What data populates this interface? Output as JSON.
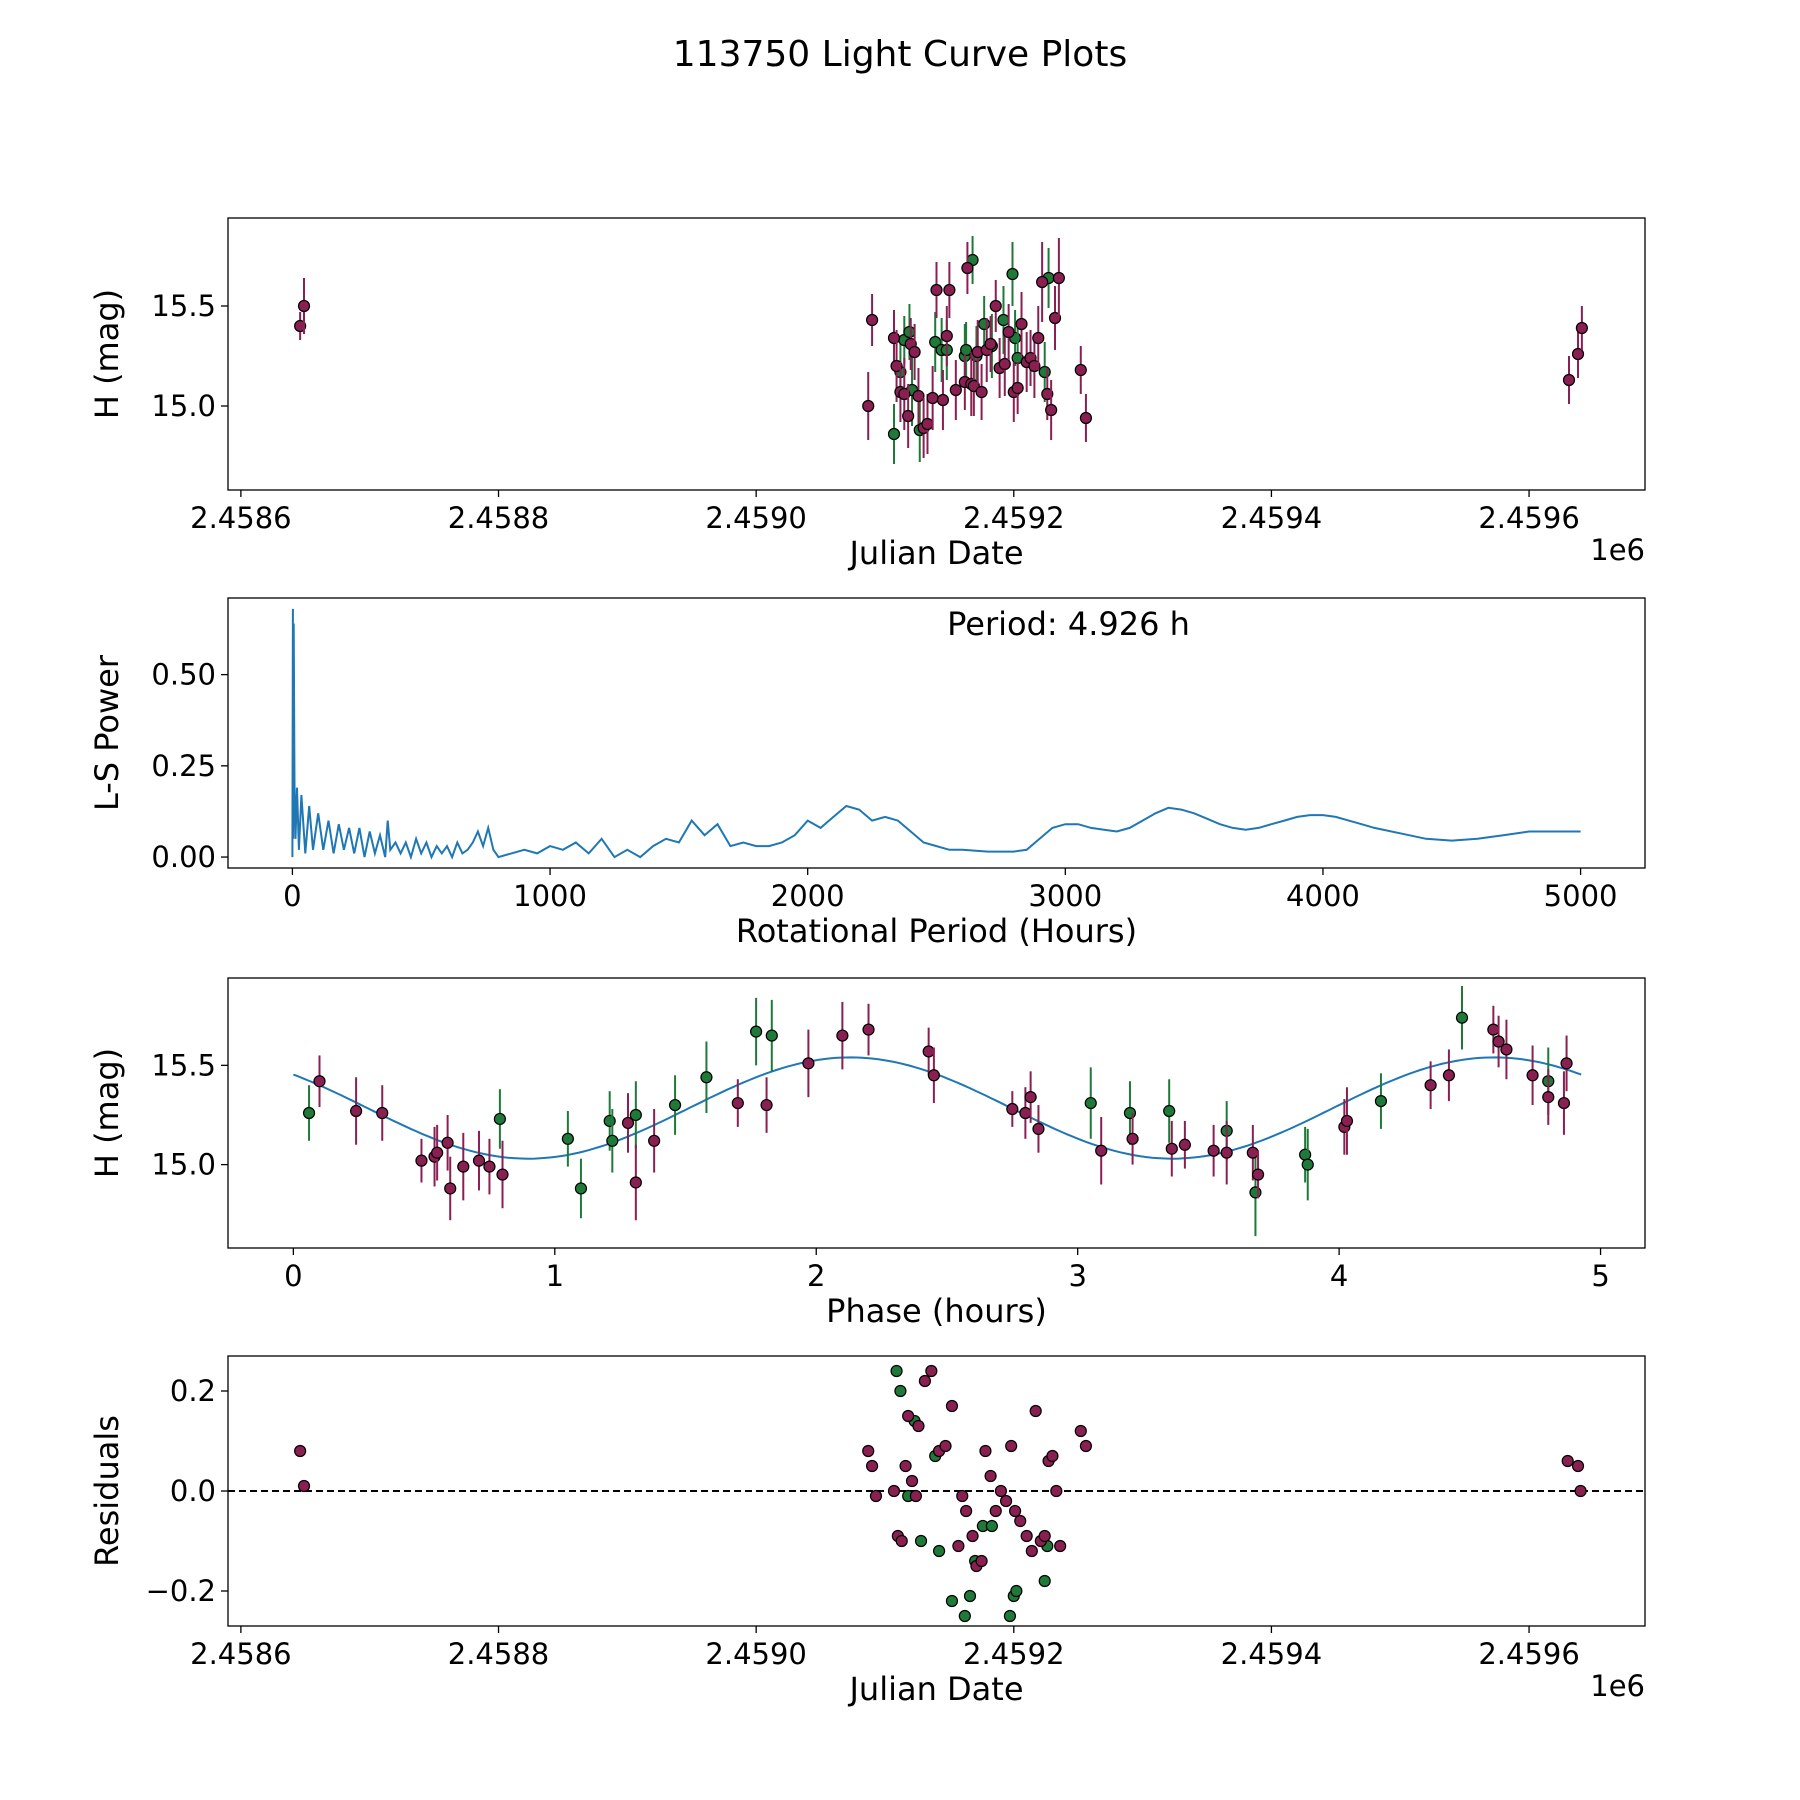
{
  "title": "113750 Light Curve Plots",
  "colors": {
    "green_filter": "#1f7a3a",
    "magenta_filter": "#8a1f52",
    "curve": "#1f77b4",
    "zero_line": "#000000"
  },
  "chart_data": [
    {
      "type": "scatter",
      "name": "light-curve",
      "xlabel": "Julian Date",
      "ylabel": "H (mag)",
      "offset_label": "1e6",
      "xlim": [
        2.45859,
        2.45969
      ],
      "ylim": [
        14.58,
        15.94
      ],
      "xticks": [
        2.4586,
        2.4588,
        2.459,
        2.4592,
        2.4594,
        2.4596
      ],
      "xtick_labels": [
        "2.4586",
        "2.4588",
        "2.4590",
        "2.4592",
        "2.4594",
        "2.4596"
      ],
      "yticks": [
        15.0,
        15.5
      ],
      "ytick_labels": [
        "15.0",
        "15.5"
      ],
      "series": [
        {
          "name": "green",
          "color": "#1f7a3a",
          "x": [
            2.459107,
            2.459112,
            2.459115,
            2.459119,
            2.459121,
            2.459127,
            2.459139,
            2.459144,
            2.459148,
            2.459162,
            2.459163,
            2.459168,
            2.459171,
            2.459177,
            2.459183,
            2.459192,
            2.459199,
            2.459201,
            2.459203,
            2.459224,
            2.459227
          ],
          "y": [
            14.86,
            15.17,
            15.33,
            15.37,
            15.08,
            14.88,
            15.32,
            15.28,
            15.28,
            15.25,
            15.28,
            15.73,
            15.25,
            15.41,
            15.3,
            15.43,
            15.66,
            15.34,
            15.24,
            15.17,
            15.64
          ],
          "err": [
            0.15,
            0.14,
            0.12,
            0.14,
            0.18,
            0.16,
            0.15,
            0.16,
            0.15,
            0.16,
            0.14,
            0.12,
            0.15,
            0.14,
            0.16,
            0.17,
            0.16,
            0.14,
            0.15,
            0.15,
            0.15
          ]
        },
        {
          "name": "magenta",
          "color": "#8a1f52",
          "x": [
            2.458646,
            2.458649,
            2.459087,
            2.45909,
            2.459107,
            2.459109,
            2.459112,
            2.459115,
            2.459118,
            2.45912,
            2.459123,
            2.459126,
            2.45913,
            2.459133,
            2.459137,
            2.45914,
            2.459145,
            2.459148,
            2.45915,
            2.459155,
            2.459162,
            2.459164,
            2.459167,
            2.459169,
            2.459172,
            2.459175,
            2.459179,
            2.459182,
            2.459186,
            2.459189,
            2.459193,
            2.459196,
            2.4592,
            2.459203,
            2.459206,
            2.45921,
            2.459213,
            2.459216,
            2.459219,
            2.459222,
            2.459226,
            2.459229,
            2.459232,
            2.459235,
            2.459252,
            2.459256,
            2.459631,
            2.459638,
            2.459641
          ],
          "y": [
            15.4,
            15.5,
            15.0,
            15.43,
            15.34,
            15.2,
            15.07,
            15.06,
            14.95,
            15.31,
            15.27,
            15.05,
            14.89,
            14.91,
            15.04,
            15.58,
            15.03,
            15.35,
            15.58,
            15.08,
            15.12,
            15.69,
            15.11,
            15.1,
            15.27,
            15.07,
            15.28,
            15.31,
            15.5,
            15.19,
            15.21,
            15.37,
            15.07,
            15.09,
            15.41,
            15.22,
            15.24,
            15.2,
            15.34,
            15.62,
            15.06,
            14.98,
            15.44,
            15.64,
            15.18,
            14.94,
            15.13,
            15.26,
            15.39
          ],
          "err": [
            0.07,
            0.14,
            0.17,
            0.13,
            0.14,
            0.18,
            0.15,
            0.18,
            0.16,
            0.13,
            0.14,
            0.14,
            0.15,
            0.15,
            0.16,
            0.14,
            0.15,
            0.15,
            0.14,
            0.15,
            0.14,
            0.13,
            0.16,
            0.15,
            0.16,
            0.14,
            0.16,
            0.14,
            0.13,
            0.15,
            0.16,
            0.14,
            0.15,
            0.13,
            0.16,
            0.15,
            0.14,
            0.16,
            0.16,
            0.2,
            0.13,
            0.15,
            0.16,
            0.2,
            0.12,
            0.12,
            0.12,
            0.12,
            0.11
          ]
        }
      ]
    },
    {
      "type": "line",
      "name": "periodogram",
      "xlabel": "Rotational Period (Hours)",
      "ylabel": "L-S Power",
      "annotation": "Period: 4.926 h",
      "xlim": [
        -250,
        5250
      ],
      "ylim": [
        -0.03,
        0.71
      ],
      "xticks": [
        0,
        1000,
        2000,
        3000,
        4000,
        5000
      ],
      "xtick_labels": [
        "0",
        "1000",
        "2000",
        "3000",
        "4000",
        "5000"
      ],
      "yticks": [
        0.0,
        0.25,
        0.5
      ],
      "ytick_labels": [
        "0.00",
        "0.25",
        "0.50"
      ],
      "x": [
        0,
        2,
        3,
        5,
        8,
        12,
        18,
        25,
        35,
        50,
        65,
        80,
        100,
        120,
        140,
        160,
        180,
        200,
        220,
        240,
        260,
        280,
        300,
        320,
        340,
        360,
        370,
        380,
        400,
        420,
        440,
        460,
        480,
        500,
        520,
        540,
        560,
        580,
        600,
        620,
        640,
        660,
        680,
        700,
        720,
        740,
        760,
        780,
        800,
        850,
        900,
        950,
        1000,
        1050,
        1100,
        1150,
        1200,
        1250,
        1300,
        1350,
        1400,
        1450,
        1500,
        1550,
        1600,
        1650,
        1700,
        1750,
        1800,
        1850,
        1900,
        1950,
        2000,
        2050,
        2100,
        2150,
        2200,
        2250,
        2300,
        2350,
        2400,
        2450,
        2500,
        2550,
        2600,
        2700,
        2800,
        2850,
        2900,
        2950,
        3000,
        3050,
        3100,
        3150,
        3200,
        3250,
        3300,
        3350,
        3400,
        3450,
        3500,
        3550,
        3600,
        3650,
        3700,
        3750,
        3800,
        3850,
        3900,
        3950,
        4000,
        4050,
        4100,
        4150,
        4200,
        4300,
        4400,
        4500,
        4600,
        4700,
        4800,
        4900,
        5000
      ],
      "y": [
        0.0,
        0.68,
        0.05,
        0.64,
        0.2,
        0.05,
        0.19,
        0.02,
        0.17,
        0.01,
        0.14,
        0.02,
        0.12,
        0.02,
        0.1,
        0.01,
        0.09,
        0.02,
        0.08,
        0.01,
        0.08,
        0.0,
        0.07,
        0.01,
        0.06,
        0.0,
        0.1,
        0.02,
        0.04,
        0.01,
        0.04,
        0.0,
        0.05,
        0.01,
        0.04,
        0.0,
        0.03,
        0.01,
        0.03,
        0.0,
        0.04,
        0.01,
        0.02,
        0.04,
        0.07,
        0.03,
        0.08,
        0.02,
        0.0,
        0.01,
        0.02,
        0.01,
        0.03,
        0.02,
        0.04,
        0.01,
        0.05,
        0.0,
        0.02,
        0.0,
        0.03,
        0.05,
        0.04,
        0.1,
        0.06,
        0.09,
        0.03,
        0.04,
        0.03,
        0.03,
        0.04,
        0.06,
        0.1,
        0.08,
        0.11,
        0.14,
        0.13,
        0.1,
        0.11,
        0.1,
        0.07,
        0.04,
        0.03,
        0.02,
        0.02,
        0.015,
        0.015,
        0.02,
        0.05,
        0.08,
        0.09,
        0.09,
        0.08,
        0.075,
        0.07,
        0.08,
        0.1,
        0.12,
        0.135,
        0.13,
        0.12,
        0.105,
        0.09,
        0.08,
        0.075,
        0.08,
        0.09,
        0.1,
        0.11,
        0.115,
        0.115,
        0.11,
        0.1,
        0.09,
        0.08,
        0.065,
        0.05,
        0.045,
        0.05,
        0.06,
        0.07,
        0.07,
        0.07
      ]
    },
    {
      "type": "scatter",
      "name": "phase-folded",
      "xlabel": "Phase (hours)",
      "ylabel": "H (mag)",
      "xlim": [
        -0.25,
        5.17
      ],
      "ylim": [
        14.58,
        15.94
      ],
      "xticks": [
        0,
        1,
        2,
        3,
        4,
        5
      ],
      "xtick_labels": [
        "0",
        "1",
        "2",
        "3",
        "4",
        "5"
      ],
      "yticks": [
        15.0,
        15.5
      ],
      "ytick_labels": [
        "15.0",
        "15.5"
      ],
      "fit": {
        "mean": 15.285,
        "amplitude": 0.255,
        "period": 4.926,
        "peak_phase": 2.13,
        "x_max": 4.926
      },
      "series": [
        {
          "name": "green",
          "color": "#1f7a3a",
          "x": [
            0.06,
            0.79,
            1.05,
            1.1,
            1.21,
            1.22,
            1.31,
            1.46,
            1.58,
            1.77,
            1.83,
            3.05,
            3.2,
            3.35,
            3.57,
            3.68,
            3.87,
            3.88,
            4.16,
            4.47,
            4.8
          ],
          "y": [
            15.26,
            15.23,
            15.13,
            14.88,
            15.22,
            15.12,
            15.25,
            15.3,
            15.44,
            15.67,
            15.65,
            15.31,
            15.26,
            15.27,
            15.17,
            14.86,
            15.05,
            15.0,
            15.32,
            15.74,
            15.42
          ],
          "err": [
            0.14,
            0.15,
            0.14,
            0.15,
            0.15,
            0.16,
            0.17,
            0.15,
            0.18,
            0.17,
            0.18,
            0.18,
            0.16,
            0.16,
            0.15,
            0.22,
            0.14,
            0.18,
            0.14,
            0.16,
            0.17
          ]
        },
        {
          "name": "magenta",
          "color": "#8a1f52",
          "x": [
            0.1,
            0.24,
            0.34,
            0.49,
            0.54,
            0.55,
            0.59,
            0.6,
            0.65,
            0.71,
            0.75,
            0.8,
            1.28,
            1.31,
            1.38,
            1.7,
            1.81,
            1.97,
            2.1,
            2.2,
            2.43,
            2.45,
            2.75,
            2.8,
            2.82,
            2.85,
            3.09,
            3.21,
            3.36,
            3.41,
            3.52,
            3.57,
            3.67,
            3.69,
            4.02,
            4.03,
            4.35,
            4.42,
            4.59,
            4.61,
            4.64,
            4.74,
            4.8,
            4.86,
            4.87
          ],
          "y": [
            15.42,
            15.27,
            15.26,
            15.02,
            15.04,
            15.06,
            15.11,
            14.88,
            14.99,
            15.02,
            14.99,
            14.95,
            15.21,
            14.91,
            15.12,
            15.31,
            15.3,
            15.51,
            15.65,
            15.68,
            15.57,
            15.45,
            15.28,
            15.26,
            15.34,
            15.18,
            15.07,
            15.13,
            15.08,
            15.1,
            15.07,
            15.06,
            15.06,
            14.95,
            15.19,
            15.22,
            15.4,
            15.45,
            15.68,
            15.62,
            15.58,
            15.45,
            15.34,
            15.31,
            15.51
          ],
          "err": [
            0.13,
            0.17,
            0.14,
            0.11,
            0.15,
            0.14,
            0.14,
            0.16,
            0.17,
            0.15,
            0.14,
            0.17,
            0.15,
            0.19,
            0.16,
            0.12,
            0.14,
            0.17,
            0.17,
            0.13,
            0.12,
            0.14,
            0.09,
            0.13,
            0.13,
            0.12,
            0.17,
            0.13,
            0.14,
            0.12,
            0.13,
            0.16,
            0.14,
            0.12,
            0.14,
            0.17,
            0.12,
            0.13,
            0.12,
            0.13,
            0.15,
            0.15,
            0.14,
            0.16,
            0.14
          ]
        }
      ]
    },
    {
      "type": "scatter",
      "name": "residuals",
      "xlabel": "Julian Date",
      "ylabel": "Residuals",
      "offset_label": "1e6",
      "xlim": [
        2.45859,
        2.45969
      ],
      "ylim": [
        -0.27,
        0.27
      ],
      "xticks": [
        2.4586,
        2.4588,
        2.459,
        2.4592,
        2.4594,
        2.4596
      ],
      "xtick_labels": [
        "2.4586",
        "2.4588",
        "2.4590",
        "2.4592",
        "2.4594",
        "2.4596"
      ],
      "yticks": [
        -0.2,
        0.0,
        0.2
      ],
      "ytick_labels": [
        "−0.2",
        "0.0",
        "0.2"
      ],
      "zero_line": 0.0,
      "series": [
        {
          "name": "green",
          "color": "#1f7a3a",
          "x": [
            2.459109,
            2.459112,
            2.459118,
            2.459123,
            2.459128,
            2.459139,
            2.459142,
            2.459152,
            2.459162,
            2.459166,
            2.45917,
            2.459176,
            2.459183,
            2.459197,
            2.4592,
            2.459202,
            2.459224,
            2.459226
          ],
          "y": [
            0.24,
            0.2,
            -0.01,
            0.14,
            -0.1,
            0.07,
            -0.12,
            -0.22,
            -0.25,
            -0.21,
            -0.14,
            -0.07,
            -0.07,
            -0.25,
            -0.21,
            -0.2,
            -0.18,
            -0.11
          ],
          "err": []
        },
        {
          "name": "magenta",
          "color": "#8a1f52",
          "x": [
            2.458646,
            2.458649,
            2.459087,
            2.45909,
            2.459093,
            2.459107,
            2.45911,
            2.459113,
            2.459116,
            2.459118,
            2.459121,
            2.459124,
            2.459126,
            2.459131,
            2.459136,
            2.459142,
            2.459147,
            2.459152,
            2.459157,
            2.45916,
            2.459163,
            2.459168,
            2.459171,
            2.459175,
            2.459178,
            2.459182,
            2.459186,
            2.45919,
            2.459194,
            2.459198,
            2.459201,
            2.459205,
            2.45921,
            2.459214,
            2.459217,
            2.459221,
            2.459224,
            2.459227,
            2.45923,
            2.459233,
            2.459236,
            2.459252,
            2.459256,
            2.45963,
            2.459638,
            2.45964
          ],
          "y": [
            0.08,
            0.01,
            0.08,
            0.05,
            -0.01,
            0.0,
            -0.09,
            -0.1,
            0.05,
            0.15,
            0.02,
            -0.01,
            0.13,
            0.22,
            0.24,
            0.08,
            0.09,
            0.17,
            -0.11,
            -0.01,
            -0.04,
            -0.09,
            -0.15,
            -0.14,
            0.08,
            0.03,
            -0.04,
            0.0,
            -0.02,
            0.09,
            -0.04,
            -0.06,
            -0.09,
            -0.12,
            0.16,
            -0.1,
            -0.09,
            0.06,
            0.07,
            0.0,
            -0.11,
            0.12,
            0.09,
            0.06,
            0.05,
            0.0
          ],
          "err": []
        }
      ]
    }
  ]
}
